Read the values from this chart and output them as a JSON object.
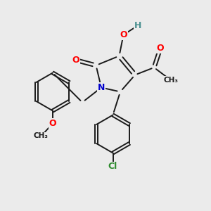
{
  "background_color": "#ebebeb",
  "bond_color": "#1a1a1a",
  "atom_colors": {
    "O": "#ff0000",
    "N": "#0000cd",
    "Cl": "#2e8b2e",
    "H": "#4a9090",
    "C": "#1a1a1a"
  },
  "figsize": [
    3.0,
    3.0
  ],
  "dpi": 100
}
